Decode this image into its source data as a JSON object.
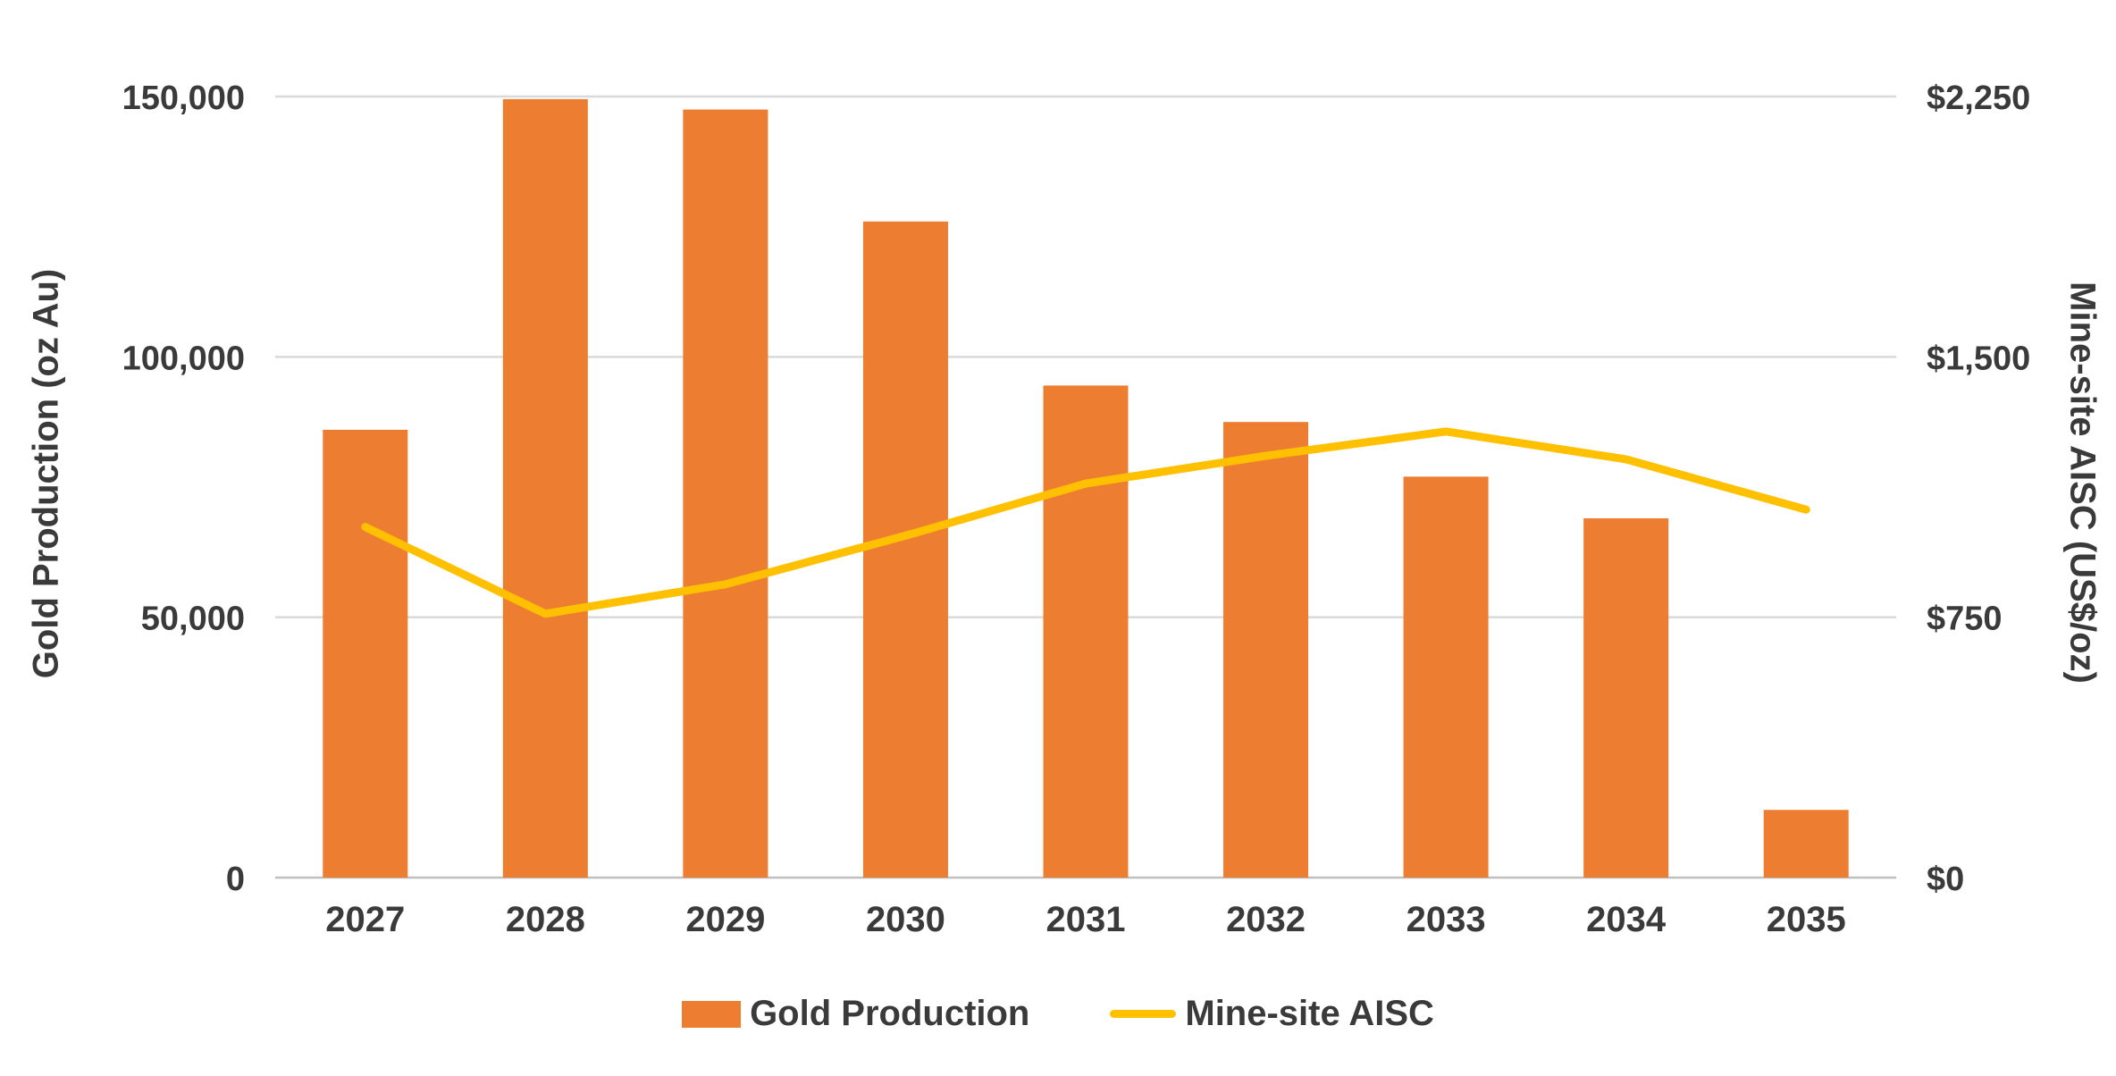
{
  "chart_data": {
    "type": "bar",
    "subtype": "combo-bar-line",
    "categories": [
      "2027",
      "2028",
      "2029",
      "2030",
      "2031",
      "2032",
      "2033",
      "2034",
      "2035"
    ],
    "series": [
      {
        "name": "Gold Production",
        "type": "bar",
        "axis": "left",
        "color": "#ED7D31",
        "values": [
          86000,
          149500,
          147500,
          126000,
          94500,
          87500,
          77000,
          69000,
          13000
        ]
      },
      {
        "name": "Mine-site AISC",
        "type": "line",
        "axis": "right",
        "color": "#FFC000",
        "values": [
          1010,
          760,
          845,
          985,
          1135,
          1215,
          1285,
          1205,
          1060
        ]
      }
    ],
    "left_axis": {
      "label": "Gold Production (oz Au)",
      "min": 0,
      "max": 150000,
      "tick_values": [
        0,
        50000,
        100000,
        150000
      ],
      "tick_labels": [
        "0",
        "50,000",
        "100,000",
        "150,000"
      ]
    },
    "right_axis": {
      "label": "Mine-site AISC (US$/oz)",
      "min": 0,
      "max": 2250,
      "tick_values": [
        0,
        750,
        1500,
        2250
      ],
      "tick_labels": [
        "$0",
        "$750",
        "$1,500",
        "$2,250"
      ]
    },
    "grid": true,
    "legend_position": "bottom",
    "title": "",
    "xlabel": ""
  },
  "colors": {
    "bar": "#ED7D31",
    "line": "#FFC000",
    "gridline": "#D9D9D9",
    "baseline": "#BFBFBF",
    "text": "#3a3a3a",
    "background": "#FFFFFF"
  }
}
